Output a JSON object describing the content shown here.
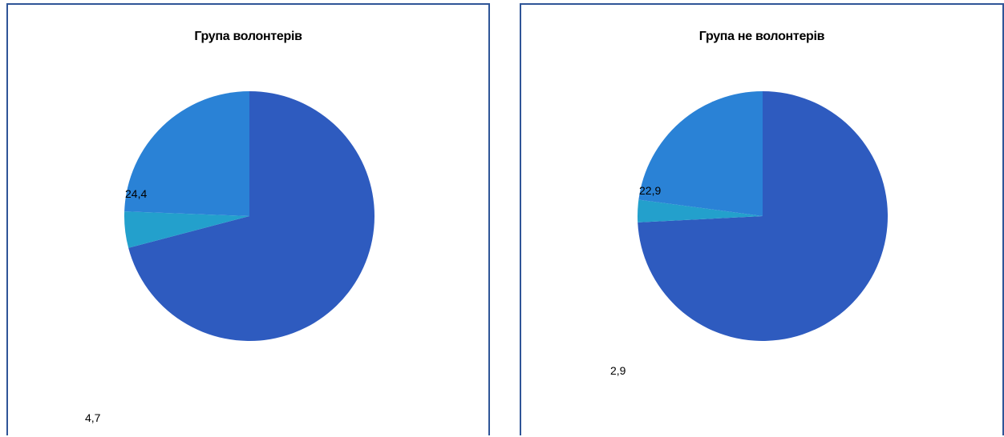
{
  "colors": {
    "frame": "#2f5597",
    "slices": [
      "#2e5bbf",
      "#23a0cc",
      "#2a82d6"
    ]
  },
  "chart_data": [
    {
      "type": "pie",
      "title": "Група волонтерів",
      "values": [
        70.9,
        4.7,
        24.4
      ],
      "data_labels": [
        "",
        "4,7",
        "24,4"
      ]
    },
    {
      "type": "pie",
      "title": "Група не волонтерів",
      "values": [
        74.2,
        2.9,
        22.9
      ],
      "data_labels": [
        "",
        "2,9",
        "22,9"
      ]
    }
  ]
}
